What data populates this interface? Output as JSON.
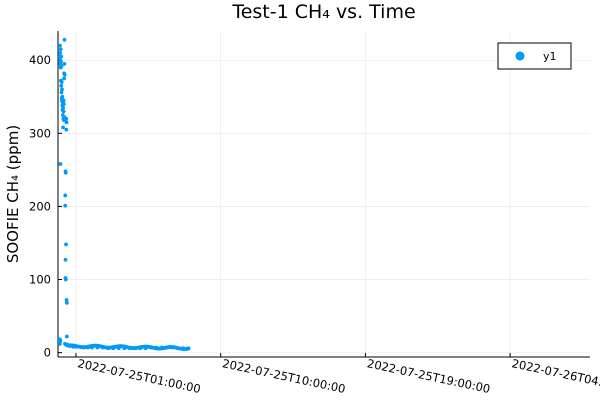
{
  "chart_data": {
    "type": "scatter",
    "title": "Test-1 CH₄ vs. Time",
    "xlabel": "",
    "ylabel": "SOOFIE CH₄ (ppm)",
    "grid": true,
    "legend_position": "top-right",
    "x_ticks": [
      "2022-07-25T01:00:00",
      "2022-07-25T10:00:00",
      "2022-07-25T19:00:00",
      "2022-07-26T04:00:00"
    ],
    "xlim": [
      "2022-07-24T23:53:00",
      "2022-07-26T08:58:00"
    ],
    "y_ticks": [
      0,
      100,
      200,
      300,
      400
    ],
    "ylim": [
      -6,
      440
    ],
    "colors": {
      "series": "#009AFA"
    },
    "series": [
      {
        "name": "y1",
        "points": [
          [
            "2022-07-25T00:00:00",
            420
          ],
          [
            "2022-07-25T00:00:00",
            405
          ],
          [
            "2022-07-25T00:00:00",
            18
          ],
          [
            "2022-07-25T00:00:00",
            15
          ],
          [
            "2022-07-25T00:00:00",
            12
          ],
          [
            "2022-07-25T00:01:00",
            410
          ],
          [
            "2022-07-25T00:01:00",
            395
          ],
          [
            "2022-07-25T00:02:00",
            400
          ],
          [
            "2022-07-25T00:02:00",
            258
          ],
          [
            "2022-07-25T00:02:00",
            16
          ],
          [
            "2022-07-25T00:03:00",
            415
          ],
          [
            "2022-07-25T00:03:00",
            390
          ],
          [
            "2022-07-25T00:04:00",
            398
          ],
          [
            "2022-07-25T00:04:00",
            372
          ],
          [
            "2022-07-25T00:05:00",
            405
          ],
          [
            "2022-07-25T00:05:00",
            365
          ],
          [
            "2022-07-25T00:06:00",
            392
          ],
          [
            "2022-07-25T00:06:00",
            356
          ],
          [
            "2022-07-25T00:07:00",
            370
          ],
          [
            "2022-07-25T00:07:00",
            348
          ],
          [
            "2022-07-25T00:08:00",
            360
          ],
          [
            "2022-07-25T00:08:00",
            344
          ],
          [
            "2022-07-25T00:09:00",
            350
          ],
          [
            "2022-07-25T00:09:00",
            338
          ],
          [
            "2022-07-25T00:10:00",
            345
          ],
          [
            "2022-07-25T00:10:00",
            332
          ],
          [
            "2022-07-25T00:11:00",
            340
          ],
          [
            "2022-07-25T00:11:00",
            325
          ],
          [
            "2022-07-25T00:12:00",
            335
          ],
          [
            "2022-07-25T00:12:00",
            308
          ],
          [
            "2022-07-25T00:13:00",
            340
          ],
          [
            "2022-07-25T00:13:00",
            320
          ],
          [
            "2022-07-25T00:14:00",
            345
          ],
          [
            "2022-07-25T00:14:00",
            330
          ],
          [
            "2022-07-25T00:15:00",
            340
          ],
          [
            "2022-07-25T00:15:00",
            318
          ],
          [
            "2022-07-25T00:16:00",
            382
          ],
          [
            "2022-07-25T00:16:00",
            375
          ],
          [
            "2022-07-25T00:17:00",
            428
          ],
          [
            "2022-07-25T00:17:00",
            395
          ],
          [
            "2022-07-25T00:18:00",
            380
          ],
          [
            "2022-07-25T00:18:00",
            322
          ],
          [
            "2022-07-25T00:19:00",
            318
          ],
          [
            "2022-07-25T00:19:00",
            12
          ],
          [
            "2022-07-25T00:20:00",
            215
          ],
          [
            "2022-07-25T00:20:00",
            201
          ],
          [
            "2022-07-25T00:21:00",
            248
          ],
          [
            "2022-07-25T00:21:00",
            127
          ],
          [
            "2022-07-25T00:21:00",
            102
          ],
          [
            "2022-07-25T00:22:00",
            246
          ],
          [
            "2022-07-25T00:22:00",
            100
          ],
          [
            "2022-07-25T00:23:00",
            148
          ],
          [
            "2022-07-25T00:23:00",
            11
          ],
          [
            "2022-07-25T00:24:00",
            320
          ],
          [
            "2022-07-25T00:24:00",
            305
          ],
          [
            "2022-07-25T00:25:00",
            315
          ],
          [
            "2022-07-25T00:25:00",
            72
          ],
          [
            "2022-07-25T00:26:00",
            68
          ],
          [
            "2022-07-25T00:26:00",
            22
          ],
          [
            "2022-07-25T00:27:00",
            11
          ],
          [
            "2022-07-25T00:30:00",
            10
          ],
          [
            "2022-07-25T00:35:00",
            9
          ],
          [
            "2022-07-25T00:40:00",
            9
          ],
          [
            "2022-07-25T00:50:00",
            8
          ],
          [
            "2022-07-25T01:00:00",
            8
          ],
          [
            "2022-07-25T01:15:00",
            8
          ],
          [
            "2022-07-25T01:30:00",
            7
          ],
          [
            "2022-07-25T01:45:00",
            7
          ],
          [
            "2022-07-25T02:00:00",
            7
          ],
          [
            "2022-07-25T02:20:00",
            7
          ],
          [
            "2022-07-25T02:40:00",
            7
          ],
          [
            "2022-07-25T03:00:00",
            6
          ],
          [
            "2022-07-25T03:20:00",
            6
          ],
          [
            "2022-07-25T03:40:00",
            6
          ],
          [
            "2022-07-25T04:00:00",
            6
          ],
          [
            "2022-07-25T04:20:00",
            6
          ],
          [
            "2022-07-25T04:40:00",
            6
          ],
          [
            "2022-07-25T05:00:00",
            6
          ],
          [
            "2022-07-25T05:20:00",
            6
          ],
          [
            "2022-07-25T05:40:00",
            7
          ],
          [
            "2022-07-25T06:00:00",
            7
          ],
          [
            "2022-07-25T06:20:00",
            7
          ],
          [
            "2022-07-25T06:40:00",
            7
          ],
          [
            "2022-07-25T07:00:00",
            7
          ],
          [
            "2022-07-25T07:20:00",
            6
          ],
          [
            "2022-07-25T07:40:00",
            6
          ],
          [
            "2022-07-25T08:00:00",
            6
          ]
        ]
      }
    ]
  }
}
